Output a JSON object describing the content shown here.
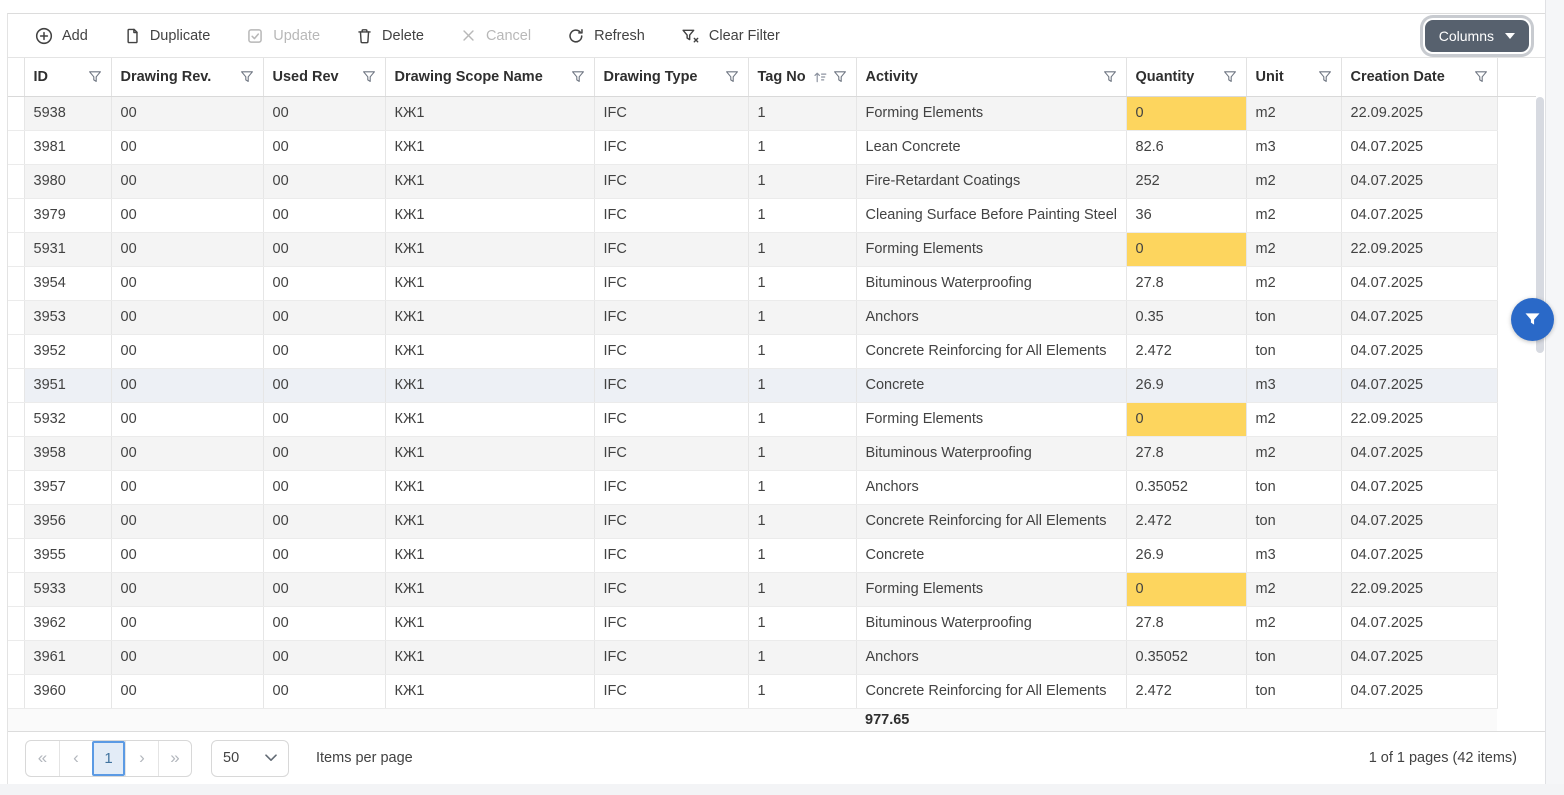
{
  "toolbar": {
    "buttons": [
      {
        "label": "Add",
        "icon": "add-circle-icon",
        "disabled": false
      },
      {
        "label": "Duplicate",
        "icon": "duplicate-icon",
        "disabled": false
      },
      {
        "label": "Update",
        "icon": "update-icon",
        "disabled": true
      },
      {
        "label": "Delete",
        "icon": "delete-icon",
        "disabled": false
      },
      {
        "label": "Cancel",
        "icon": "cancel-icon",
        "disabled": true
      },
      {
        "label": "Refresh",
        "icon": "refresh-icon",
        "disabled": false
      },
      {
        "label": "Clear Filter",
        "icon": "clear-filter-icon",
        "disabled": false
      }
    ],
    "columns_button_label": "Columns"
  },
  "grid": {
    "columns": [
      {
        "label": "ID",
        "filter": true
      },
      {
        "label": "Drawing Rev.",
        "filter": true
      },
      {
        "label": "Used Rev",
        "filter": true
      },
      {
        "label": "Drawing Scope Name",
        "filter": true
      },
      {
        "label": "Drawing Type",
        "filter": true
      },
      {
        "label": "Tag No",
        "filter": true,
        "sorted": "asc"
      },
      {
        "label": "Activity",
        "filter": true
      },
      {
        "label": "Quantity",
        "filter": true
      },
      {
        "label": "Unit",
        "filter": true
      },
      {
        "label": "Creation Date",
        "filter": true
      }
    ],
    "rows": [
      {
        "id": "5938",
        "drawing_rev": "00",
        "used_rev": "00",
        "scope": "КЖ1",
        "type": "IFC",
        "tag": "1",
        "activity": "Forming Elements",
        "qty": "0",
        "qty_highlight": true,
        "unit": "m2",
        "date": "22.09.2025"
      },
      {
        "id": "3981",
        "drawing_rev": "00",
        "used_rev": "00",
        "scope": "КЖ1",
        "type": "IFC",
        "tag": "1",
        "activity": "Lean Concrete",
        "qty": "82.6",
        "qty_highlight": false,
        "unit": "m3",
        "date": "04.07.2025"
      },
      {
        "id": "3980",
        "drawing_rev": "00",
        "used_rev": "00",
        "scope": "КЖ1",
        "type": "IFC",
        "tag": "1",
        "activity": "Fire-Retardant Coatings",
        "qty": "252",
        "qty_highlight": false,
        "unit": "m2",
        "date": "04.07.2025"
      },
      {
        "id": "3979",
        "drawing_rev": "00",
        "used_rev": "00",
        "scope": "КЖ1",
        "type": "IFC",
        "tag": "1",
        "activity": "Cleaning Surface Before Painting Steel",
        "qty": "36",
        "qty_highlight": false,
        "unit": "m2",
        "date": "04.07.2025"
      },
      {
        "id": "5931",
        "drawing_rev": "00",
        "used_rev": "00",
        "scope": "КЖ1",
        "type": "IFC",
        "tag": "1",
        "activity": "Forming Elements",
        "qty": "0",
        "qty_highlight": true,
        "unit": "m2",
        "date": "22.09.2025"
      },
      {
        "id": "3954",
        "drawing_rev": "00",
        "used_rev": "00",
        "scope": "КЖ1",
        "type": "IFC",
        "tag": "1",
        "activity": "Bituminous Waterproofing",
        "qty": "27.8",
        "qty_highlight": false,
        "unit": "m2",
        "date": "04.07.2025"
      },
      {
        "id": "3953",
        "drawing_rev": "00",
        "used_rev": "00",
        "scope": "КЖ1",
        "type": "IFC",
        "tag": "1",
        "activity": "Anchors",
        "qty": "0.35",
        "qty_highlight": false,
        "unit": "ton",
        "date": "04.07.2025"
      },
      {
        "id": "3952",
        "drawing_rev": "00",
        "used_rev": "00",
        "scope": "КЖ1",
        "type": "IFC",
        "tag": "1",
        "activity": "Concrete Reinforcing for All Elements",
        "qty": "2.472",
        "qty_highlight": false,
        "unit": "ton",
        "date": "04.07.2025"
      },
      {
        "id": "3951",
        "drawing_rev": "00",
        "used_rev": "00",
        "scope": "КЖ1",
        "type": "IFC",
        "tag": "1",
        "activity": "Concrete",
        "qty": "26.9",
        "qty_highlight": false,
        "unit": "m3",
        "date": "04.07.2025",
        "highlighted": true
      },
      {
        "id": "5932",
        "drawing_rev": "00",
        "used_rev": "00",
        "scope": "КЖ1",
        "type": "IFC",
        "tag": "1",
        "activity": "Forming Elements",
        "qty": "0",
        "qty_highlight": true,
        "unit": "m2",
        "date": "22.09.2025"
      },
      {
        "id": "3958",
        "drawing_rev": "00",
        "used_rev": "00",
        "scope": "КЖ1",
        "type": "IFC",
        "tag": "1",
        "activity": "Bituminous Waterproofing",
        "qty": "27.8",
        "qty_highlight": false,
        "unit": "m2",
        "date": "04.07.2025"
      },
      {
        "id": "3957",
        "drawing_rev": "00",
        "used_rev": "00",
        "scope": "КЖ1",
        "type": "IFC",
        "tag": "1",
        "activity": "Anchors",
        "qty": "0.35052",
        "qty_highlight": false,
        "unit": "ton",
        "date": "04.07.2025"
      },
      {
        "id": "3956",
        "drawing_rev": "00",
        "used_rev": "00",
        "scope": "КЖ1",
        "type": "IFC",
        "tag": "1",
        "activity": "Concrete Reinforcing for All Elements",
        "qty": "2.472",
        "qty_highlight": false,
        "unit": "ton",
        "date": "04.07.2025"
      },
      {
        "id": "3955",
        "drawing_rev": "00",
        "used_rev": "00",
        "scope": "КЖ1",
        "type": "IFC",
        "tag": "1",
        "activity": "Concrete",
        "qty": "26.9",
        "qty_highlight": false,
        "unit": "m3",
        "date": "04.07.2025"
      },
      {
        "id": "5933",
        "drawing_rev": "00",
        "used_rev": "00",
        "scope": "КЖ1",
        "type": "IFC",
        "tag": "1",
        "activity": "Forming Elements",
        "qty": "0",
        "qty_highlight": true,
        "unit": "m2",
        "date": "22.09.2025"
      },
      {
        "id": "3962",
        "drawing_rev": "00",
        "used_rev": "00",
        "scope": "КЖ1",
        "type": "IFC",
        "tag": "1",
        "activity": "Bituminous Waterproofing",
        "qty": "27.8",
        "qty_highlight": false,
        "unit": "m2",
        "date": "04.07.2025"
      },
      {
        "id": "3961",
        "drawing_rev": "00",
        "used_rev": "00",
        "scope": "КЖ1",
        "type": "IFC",
        "tag": "1",
        "activity": "Anchors",
        "qty": "0.35052",
        "qty_highlight": false,
        "unit": "ton",
        "date": "04.07.2025"
      },
      {
        "id": "3960",
        "drawing_rev": "00",
        "used_rev": "00",
        "scope": "КЖ1",
        "type": "IFC",
        "tag": "1",
        "activity": "Concrete Reinforcing for All Elements",
        "qty": "2.472",
        "qty_highlight": false,
        "unit": "ton",
        "date": "04.07.2025"
      }
    ],
    "footer": {
      "qty_sum": "977.65"
    }
  },
  "pager": {
    "first": "«",
    "prev": "‹",
    "current_page": "1",
    "next": "›",
    "last": "»",
    "page_size": "50",
    "items_per_page_label": "Items per page",
    "info": "1 of 1 pages (42 items)"
  },
  "colors": {
    "quantity_highlight": "#fdd55e",
    "fab_blue": "#2a69c8",
    "columns_button_bg": "#57616e",
    "current_page_border": "#5b9ae4",
    "row_stripe": "#f4f4f4"
  }
}
